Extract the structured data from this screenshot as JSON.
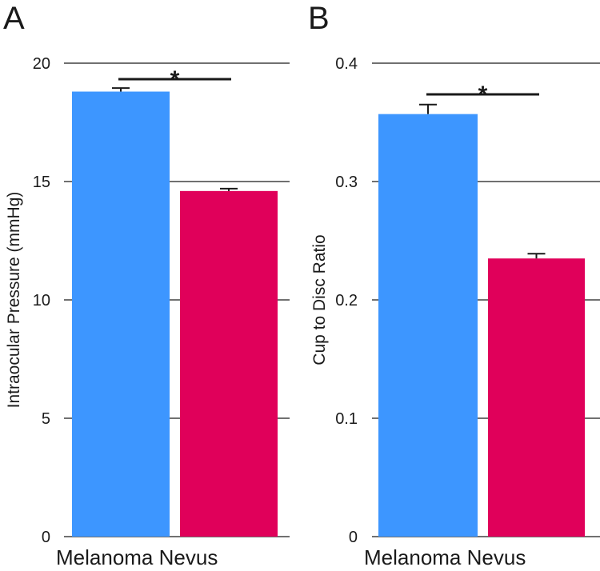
{
  "chart_data": [
    {
      "type": "bar",
      "panel": "A",
      "categories": [
        "Melanoma",
        "Nevus"
      ],
      "values": [
        18.8,
        14.6
      ],
      "errors": [
        0.15,
        0.1
      ],
      "colors": [
        "#3d96ff",
        "#e0005a"
      ],
      "ylabel": "Intraocular Pressure (mmHg)",
      "xlabel": "",
      "ylim": [
        0,
        20
      ],
      "yticks": [
        0,
        5,
        10,
        15,
        20
      ],
      "ytick_labels": [
        "0",
        "5",
        "10",
        "15",
        "20"
      ],
      "grid": true,
      "significance": {
        "pair": [
          0,
          1
        ],
        "label": "*"
      }
    },
    {
      "type": "bar",
      "panel": "B",
      "categories": [
        "Melanoma",
        "Nevus"
      ],
      "values": [
        0.357,
        0.235
      ],
      "errors": [
        0.008,
        0.004
      ],
      "colors": [
        "#3d96ff",
        "#e0005a"
      ],
      "ylabel": "Cup to Disc Ratio",
      "xlabel": "",
      "ylim": [
        0,
        0.4
      ],
      "yticks": [
        0,
        0.1,
        0.2,
        0.3,
        0.4
      ],
      "ytick_labels": [
        "0",
        "0.1",
        "0.2",
        "0.3",
        "0.4"
      ],
      "grid": true,
      "significance": {
        "pair": [
          0,
          1
        ],
        "label": "*"
      }
    }
  ]
}
